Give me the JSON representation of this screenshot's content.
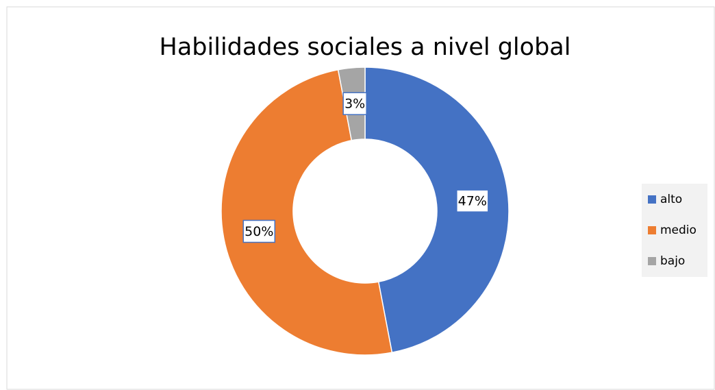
{
  "chart_data": {
    "type": "donut",
    "title": "Habilidades sociales a nivel global",
    "categories": [
      "alto",
      "medio",
      "bajo"
    ],
    "values": [
      47,
      50,
      3
    ],
    "value_labels": [
      "47%",
      "50%",
      "3%"
    ],
    "colors": [
      "#4472c4",
      "#ed7d31",
      "#a5a5a5"
    ],
    "legend": "right"
  }
}
